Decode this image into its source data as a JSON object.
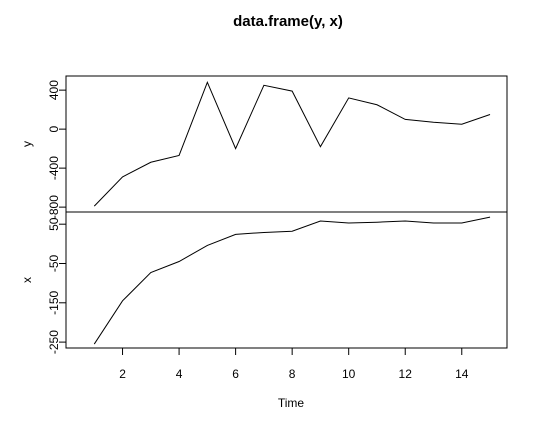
{
  "chart_data": {
    "type": "line",
    "title": "data.frame(y, x)",
    "xlabel": "Time",
    "x": [
      1,
      2,
      3,
      4,
      5,
      6,
      7,
      8,
      9,
      10,
      11,
      12,
      13,
      14,
      15
    ],
    "xlim": [
      0,
      15.6
    ],
    "xticks": [
      2,
      4,
      6,
      8,
      10,
      12,
      14
    ],
    "color": "#000000",
    "panels": [
      {
        "ylabel": "y",
        "values": [
          -790,
          -490,
          -340,
          -270,
          480,
          -200,
          450,
          390,
          -180,
          320,
          250,
          100,
          70,
          50,
          150
        ],
        "ylim": [
          -850,
          545
        ],
        "yticks": [
          -800,
          -400,
          0,
          400
        ]
      },
      {
        "ylabel": "x",
        "values": [
          -255,
          -145,
          -73,
          -45,
          -4,
          24,
          29,
          32,
          58,
          53,
          55,
          58,
          53,
          53,
          68
        ],
        "ylim": [
          -265,
          81
        ],
        "yticks": [
          -250,
          -150,
          -50,
          50
        ]
      }
    ]
  }
}
